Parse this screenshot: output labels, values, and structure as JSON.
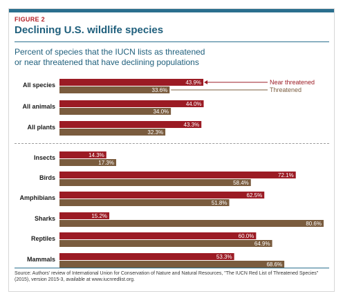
{
  "figure_label": "FIGURE 2",
  "title": "Declining U.S. wildlife species",
  "subtitle_line1": "Percent of species that the IUCN lists as threatened",
  "subtitle_line2": "or near threatened that have declining populations",
  "source": "Source: Authors' review of International Union for Conservation of Nature and Natural Resources, \"The IUCN Red List of Threatened Species\" (2015), version 2015-3, available at www.iucnredlist.org.",
  "colors": {
    "near_threatened": "#9b1b24",
    "threatened": "#7a5c3e",
    "accent": "#1f5f7c"
  },
  "chart_data": {
    "type": "bar",
    "orientation": "horizontal",
    "xlim": [
      0,
      80.6
    ],
    "categories": [
      "All species",
      "All animals",
      "All plants",
      "Insects",
      "Birds",
      "Amphibians",
      "Sharks",
      "Reptiles",
      "Mammals"
    ],
    "series": [
      {
        "name": "Near threatened",
        "values": [
          43.9,
          44.0,
          43.3,
          14.3,
          72.1,
          62.5,
          15.2,
          60.0,
          53.3
        ],
        "labels": [
          "43.9%",
          "44.0%",
          "43.3%",
          "14.3%",
          "72.1%",
          "62.5%",
          "15.2%",
          "60.0%",
          "53.3%"
        ]
      },
      {
        "name": "Threatened",
        "values": [
          33.6,
          34.0,
          32.3,
          17.3,
          58.4,
          51.8,
          80.6,
          64.9,
          68.6
        ],
        "labels": [
          "33.6%",
          "34.0%",
          "32.3%",
          "17.3%",
          "58.4%",
          "51.8%",
          "80.6%",
          "64.9%",
          "68.6%"
        ]
      }
    ],
    "legend": [
      "Near threatened",
      "Threatened"
    ],
    "legend_position": "right, attached to first category"
  }
}
